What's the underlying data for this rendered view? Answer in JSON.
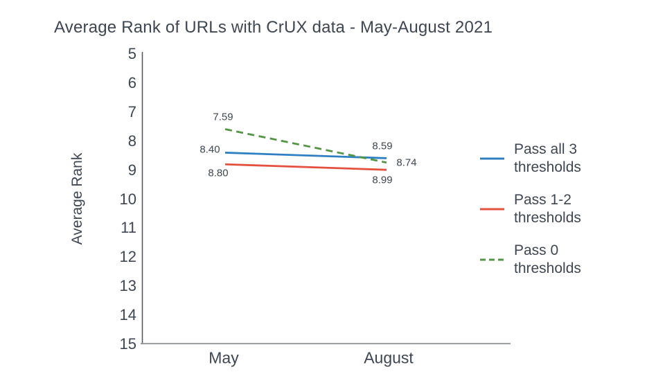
{
  "title": "Average Rank of URLs with CrUX data - May-August 2021",
  "y_axis_label": "Average Rank",
  "chart_data": {
    "type": "line",
    "categories": [
      "May",
      "August"
    ],
    "title": "Average Rank of URLs with CrUX data - May-August 2021",
    "xlabel": "",
    "ylabel": "Average Rank",
    "ylim": [
      5,
      15
    ],
    "y_axis_inverted": true,
    "yticks": [
      5,
      6,
      7,
      8,
      9,
      10,
      11,
      12,
      13,
      14,
      15
    ],
    "grid": false,
    "legend_position": "right",
    "series": [
      {
        "name": "Pass all 3 thresholds",
        "values": [
          8.4,
          8.59
        ],
        "point_labels": [
          "8.40",
          "8.59"
        ],
        "color": "#2f80c3",
        "line_style": "solid"
      },
      {
        "name": "Pass 1-2 thresholds",
        "values": [
          8.8,
          8.99
        ],
        "point_labels": [
          "8.80",
          "8.99"
        ],
        "color": "#e4503e",
        "line_style": "solid"
      },
      {
        "name": "Pass 0 thresholds",
        "values": [
          7.59,
          8.74
        ],
        "point_labels": [
          "7.59",
          "8.74"
        ],
        "color": "#549645",
        "line_style": "dashed"
      }
    ],
    "axis_colors": {
      "y_axis_line": "#4d5156",
      "x_axis_line": "#8f959a"
    },
    "text_color": "#3e4651"
  }
}
